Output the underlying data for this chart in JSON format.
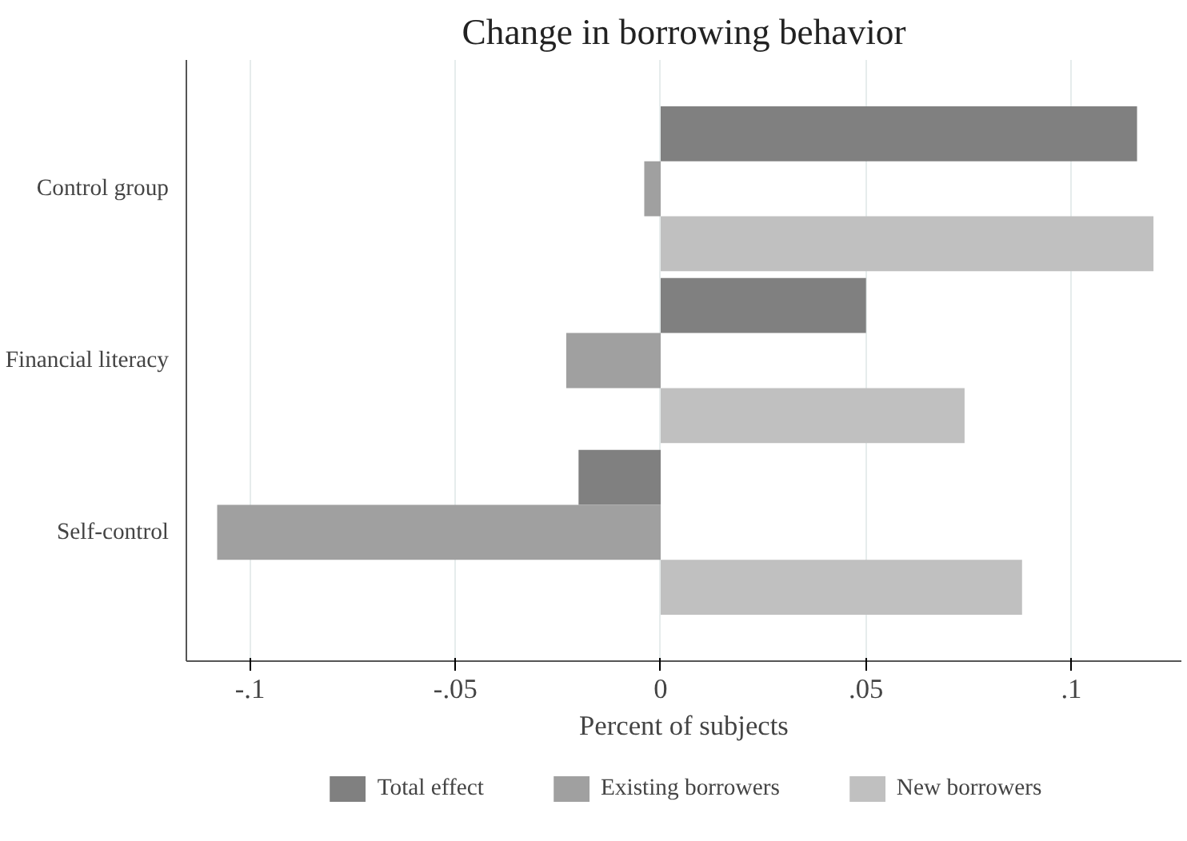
{
  "chart_data": {
    "type": "bar",
    "orientation": "horizontal",
    "title": "Change in borrowing behavior",
    "xlabel": "Percent of subjects",
    "categories": [
      "Control group",
      "Financial literacy",
      "Self-control"
    ],
    "series": [
      {
        "name": "Total effect",
        "color": "#808080",
        "values": [
          0.116,
          0.05,
          -0.02
        ]
      },
      {
        "name": "Existing borrowers",
        "color": "#a0a0a0",
        "values": [
          -0.004,
          -0.023,
          -0.108
        ]
      },
      {
        "name": "New borrowers",
        "color": "#c0c0c0",
        "values": [
          0.12,
          0.074,
          0.088
        ]
      }
    ],
    "xlim": [
      -0.1155,
      0.1268
    ],
    "xticks": [
      {
        "value": -0.1,
        "label": "-.1"
      },
      {
        "value": -0.05,
        "label": "-.05"
      },
      {
        "value": 0,
        "label": "0"
      },
      {
        "value": 0.05,
        "label": ".05"
      },
      {
        "value": 0.1,
        "label": ".1"
      }
    ],
    "grid": "x",
    "legend": "bottom"
  }
}
